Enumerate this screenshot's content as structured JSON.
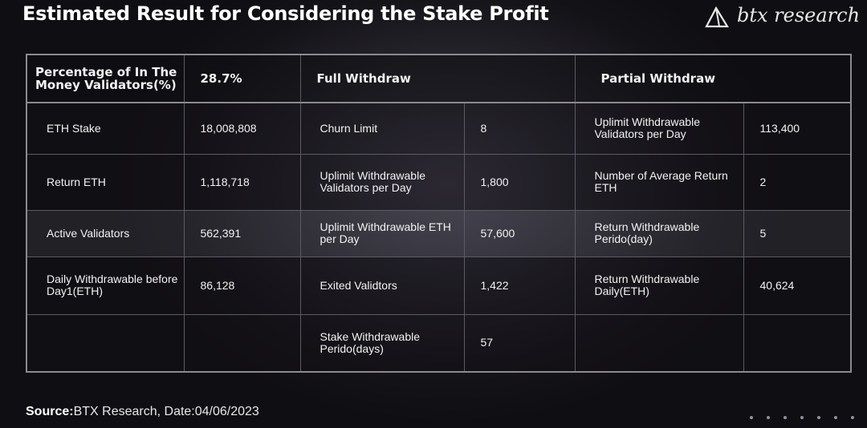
{
  "title": "Estimated Result for Considering the Stake Profit",
  "logo": {
    "text": "btx research",
    "icon": "triangle-logo-icon"
  },
  "table": {
    "header": {
      "percentage_label": "Percentage of In The Money Validators(%)",
      "percentage_value": "28.7%",
      "full_withdraw": "Full Withdraw",
      "partial_withdraw": "Partial Withdraw"
    },
    "rows": [
      {
        "c0": "ETH Stake",
        "c1": "18,008,808",
        "c2": "Churn Limit",
        "c3": "8",
        "c4": "Uplimit Withdrawable Validators per Day",
        "c5": "113,400"
      },
      {
        "c0": "Return ETH",
        "c1": "1,118,718",
        "c2": "Uplimit Withdrawable Validators per Day",
        "c3": "1,800",
        "c4": "Number of Average Return ETH",
        "c5": "2"
      },
      {
        "c0": "Active Validators",
        "c1": "562,391",
        "c2": "Uplimit Withdrawable ETH per Day",
        "c3": "57,600",
        "c4": "Return Withdrawable Perido(day)",
        "c5": "5"
      },
      {
        "c0": "Daily Withdrawable before Day1(ETH)",
        "c1": "86,128",
        "c2": "Exited Validtors",
        "c3": "1,422",
        "c4": "Return Withdrawable Daily(ETH)",
        "c5": "40,624"
      },
      {
        "c0": "",
        "c1": "",
        "c2": "Stake Withdrawable Perido(days)",
        "c3": "57",
        "c4": "",
        "c5": ""
      }
    ]
  },
  "source": {
    "label": "Source:",
    "text": "BTX Research, Date:04/06/2023"
  },
  "colors": {
    "background": "#141318",
    "border": "#8a8a90",
    "text": "#ffffff"
  }
}
